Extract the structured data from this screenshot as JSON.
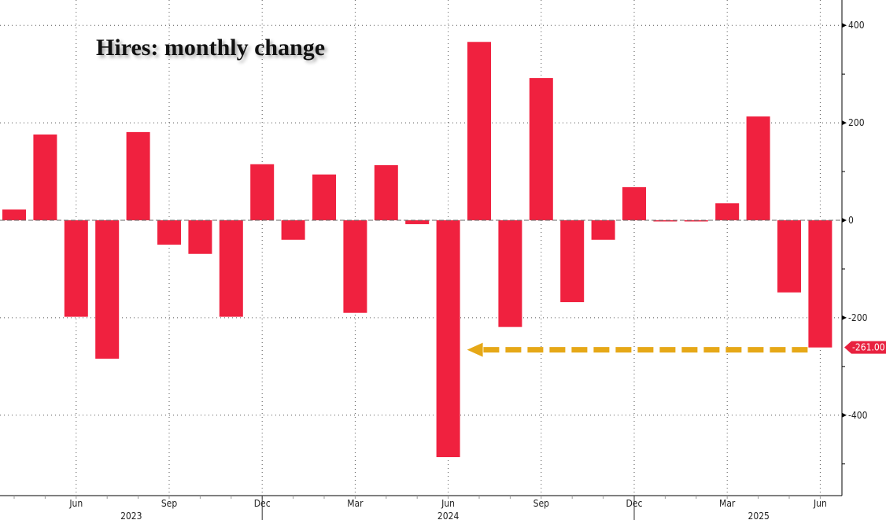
{
  "chart_data": {
    "type": "bar",
    "title": "Hires: monthly change",
    "xlabel": "",
    "ylabel": "",
    "categories": [
      "Apr 2023",
      "May 2023",
      "Jun 2023",
      "Jul 2023",
      "Aug 2023",
      "Sep 2023",
      "Oct 2023",
      "Nov 2023",
      "Dec 2023",
      "Jan 2024",
      "Feb 2024",
      "Mar 2024",
      "Apr 2024",
      "May 2024",
      "Jun 2024",
      "Jul 2024",
      "Aug 2024",
      "Sep 2024",
      "Oct 2024",
      "Nov 2024",
      "Dec 2024",
      "Jan 2025",
      "Feb 2025",
      "Mar 2025",
      "Apr 2025",
      "May 2025",
      "Jun 2025"
    ],
    "values": [
      22,
      176,
      -198,
      -284,
      181,
      -50,
      -69,
      -198,
      115,
      -40,
      94,
      -190,
      113,
      -8,
      -486,
      366,
      -219,
      292,
      -168,
      -40,
      68,
      -2,
      -1,
      35,
      213,
      -148,
      -261
    ],
    "ylim": [
      -565,
      452
    ],
    "yticks": [
      400,
      200,
      0,
      -200,
      -400
    ],
    "xticks": [
      {
        "label": "Jun",
        "index": 2
      },
      {
        "label": "Sep",
        "index": 5
      },
      {
        "label": "Dec",
        "index": 8
      },
      {
        "label": "Mar",
        "index": 11
      },
      {
        "label": "Jun",
        "index": 14
      },
      {
        "label": "Sep",
        "index": 17
      },
      {
        "label": "Dec",
        "index": 20
      },
      {
        "label": "Mar",
        "index": 23
      },
      {
        "label": "Jun",
        "index": 26
      }
    ],
    "years": [
      {
        "label": "2023",
        "index": 2
      },
      {
        "label": "2024",
        "index": 14
      },
      {
        "label": "2025",
        "index": 23
      }
    ],
    "last_value_label": "-261.00",
    "annotation": "dashed arrow from last bar pointing left to Jun 2024",
    "grid": true,
    "colors": {
      "bar": "#f0213f",
      "arrow": "#e6a817",
      "label_bg": "#e8213f"
    }
  }
}
